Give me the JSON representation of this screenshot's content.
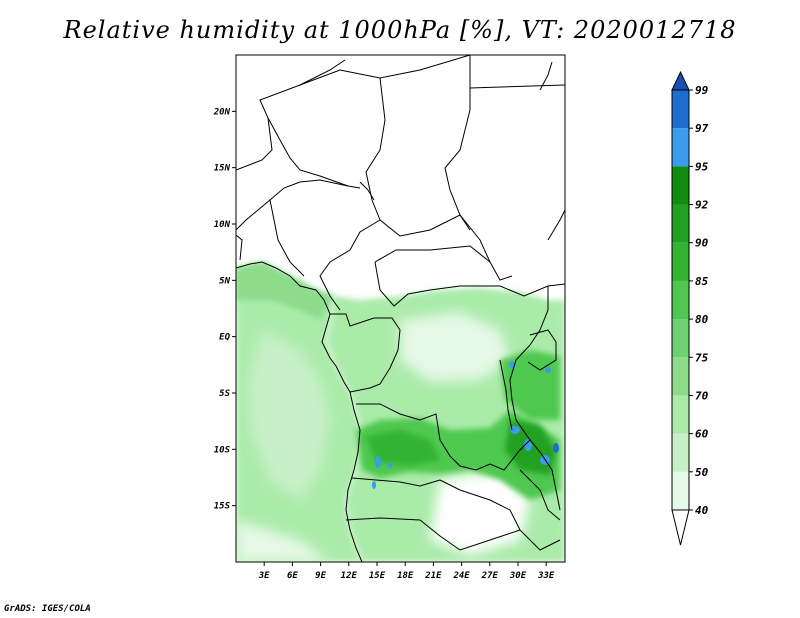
{
  "title": "Relative humidity at 1000hPa [%], VT: 2020012718",
  "credit": "GrADS: IGES/COLA",
  "map": {
    "lat_labels": [
      "20N",
      "15N",
      "10N",
      "5N",
      "EQ",
      "5S",
      "10S",
      "15S"
    ],
    "lon_labels": [
      "3E",
      "6E",
      "9E",
      "12E",
      "15E",
      "18E",
      "21E",
      "24E",
      "27E",
      "30E",
      "33E"
    ],
    "lat_range": [
      -20,
      25
    ],
    "lon_range": [
      0,
      35
    ]
  },
  "colorbar": {
    "levels": [
      "40",
      "50",
      "60",
      "70",
      "75",
      "80",
      "85",
      "90",
      "92",
      "95",
      "97",
      "99"
    ],
    "colors": [
      "#ffffff",
      "#e6f8e6",
      "#c8f0c8",
      "#aaebaa",
      "#8cdc8c",
      "#6ed06e",
      "#50c850",
      "#32b432",
      "#21a021",
      "#108c10",
      "#3a9cef",
      "#1e6ed2",
      "#1a50b4"
    ]
  }
}
